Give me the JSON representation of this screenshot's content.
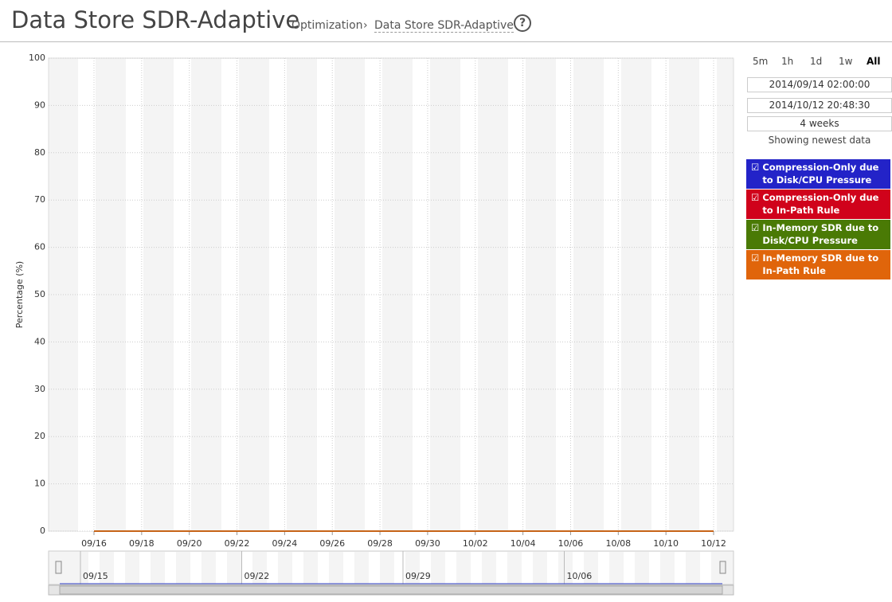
{
  "header": {
    "title": "Data Store SDR-Adaptive",
    "breadcrumb": [
      "Optimization",
      "Data Store SDR-Adaptive"
    ]
  },
  "controls": {
    "ranges": [
      "5m",
      "1h",
      "1d",
      "1w",
      "All"
    ],
    "start": "2014/09/14 02:00:00",
    "end": "2014/10/12 20:48:30",
    "duration": "4 weeks",
    "status": "Showing newest data"
  },
  "chart_data": {
    "type": "line",
    "ylabel": "Percentage (%)",
    "x": [
      "09/16",
      "09/18",
      "09/20",
      "09/22",
      "09/24",
      "09/26",
      "09/28",
      "09/30",
      "10/02",
      "10/04",
      "10/06",
      "10/08",
      "10/10",
      "10/12"
    ],
    "series": [
      {
        "name": "Compression-Only due to Disk/CPU Pressure",
        "color": "#2323c8",
        "values": [
          0,
          0,
          0,
          0,
          0,
          0,
          0,
          0,
          0,
          0,
          0,
          0,
          0,
          0
        ]
      },
      {
        "name": "Compression-Only due to In-Path Rule",
        "color": "#d0021b",
        "values": [
          0,
          0,
          0,
          0,
          0,
          0,
          0,
          0,
          0,
          0,
          0,
          0,
          0,
          0
        ]
      },
      {
        "name": "In-Memory SDR due to Disk/CPU Pressure",
        "color": "#4a7a05",
        "values": [
          0,
          0,
          0,
          0,
          0,
          0,
          0,
          0,
          0,
          0,
          0,
          0,
          0,
          0
        ]
      },
      {
        "name": "In-Memory SDR due to In-Path Rule",
        "color": "#e0650b",
        "values": [
          0,
          0,
          0,
          0,
          0,
          0,
          0,
          0,
          0,
          0,
          0,
          0,
          0,
          0
        ]
      }
    ],
    "ylim": [
      0,
      100
    ],
    "yticks": [
      0,
      10,
      20,
      30,
      40,
      50,
      60,
      70,
      80,
      90,
      100
    ],
    "grid": true
  },
  "navigator": {
    "ticks": [
      "09/15",
      "09/22",
      "09/29",
      "10/06"
    ]
  }
}
